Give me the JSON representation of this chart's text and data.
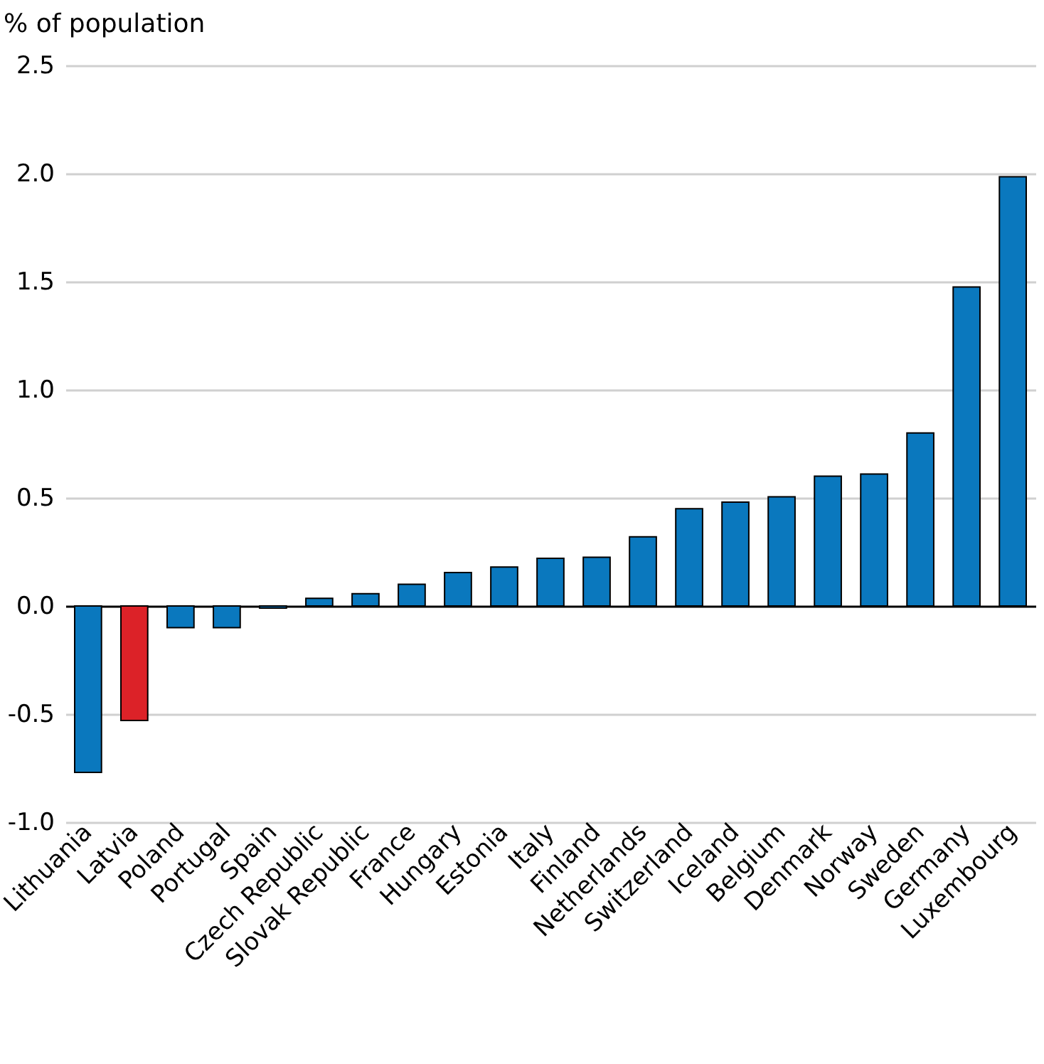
{
  "chart_data": {
    "type": "bar",
    "ylabel": "% of population",
    "categories": [
      "Lithuania",
      "Latvia",
      "Poland",
      "Portugal",
      "Spain",
      "Czech Republic",
      "Slovak Republic",
      "France",
      "Hungary",
      "Estonia",
      "Italy",
      "Finland",
      "Netherlands",
      "Switzerland",
      "Iceland",
      "Belgium",
      "Denmark",
      "Norway",
      "Sweden",
      "Germany",
      "Luxembourg"
    ],
    "values": [
      -0.77,
      -0.53,
      -0.1,
      -0.1,
      -0.01,
      0.035,
      0.057,
      0.1,
      0.155,
      0.18,
      0.22,
      0.225,
      0.32,
      0.45,
      0.48,
      0.505,
      0.6,
      0.61,
      0.8,
      1.475,
      1.985
    ],
    "colors": [
      "#0a78be",
      "#dc2228",
      "#0a78be",
      "#0a78be",
      "#0a78be",
      "#0a78be",
      "#0a78be",
      "#0a78be",
      "#0a78be",
      "#0a78be",
      "#0a78be",
      "#0a78be",
      "#0a78be",
      "#0a78be",
      "#0a78be",
      "#0a78be",
      "#0a78be",
      "#0a78be",
      "#0a78be",
      "#0a78be",
      "#0a78be"
    ],
    "ylim": [
      -1.0,
      2.5
    ],
    "yticks": [
      {
        "value": -1.0,
        "label": "-1.0"
      },
      {
        "value": -0.5,
        "label": "-0.5"
      },
      {
        "value": 0,
        "label": "0.0"
      },
      {
        "value": 0.5,
        "label": "0.5"
      },
      {
        "value": 1.0,
        "label": "1.0"
      },
      {
        "value": 1.5,
        "label": "1.5"
      },
      {
        "value": 2.0,
        "label": "2.0"
      },
      {
        "value": 2.5,
        "label": "2.5"
      }
    ],
    "grid": "y"
  }
}
